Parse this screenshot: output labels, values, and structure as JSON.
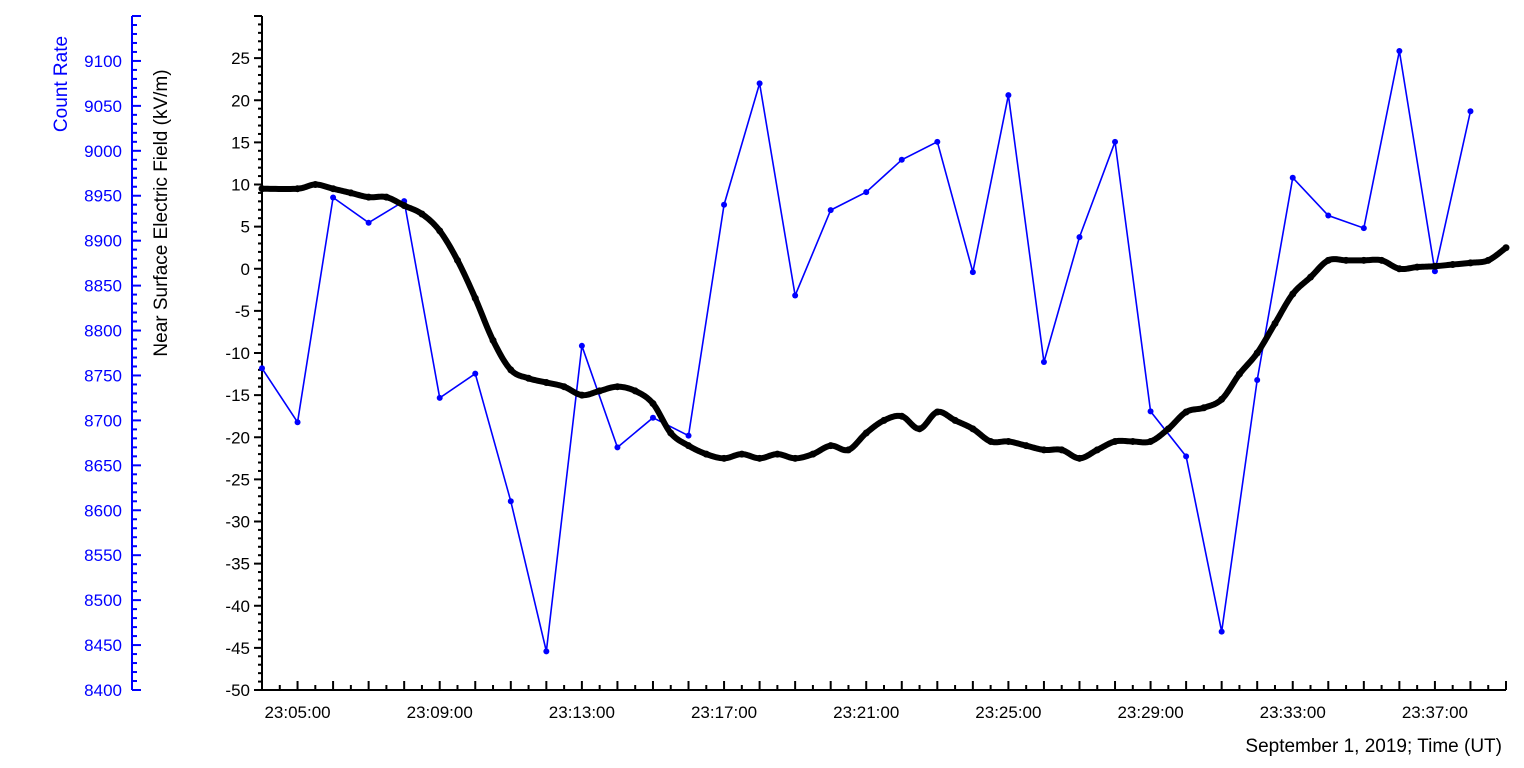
{
  "chart_data": {
    "type": "line",
    "xlabel": "September 1, 2019; Time (UT)",
    "x_ticks": [
      "23:05:00",
      "23:09:00",
      "23:13:00",
      "23:17:00",
      "23:21:00",
      "23:25:00",
      "23:29:00",
      "23:33:00",
      "23:37:00"
    ],
    "x_range_minutes": [
      "23:04:00",
      "23:39:00"
    ],
    "left_axis": {
      "label": "Count Rate",
      "color": "#0000ff",
      "ylim": [
        8400,
        9150
      ],
      "ticks": [
        8400,
        8450,
        8500,
        8550,
        8600,
        8650,
        8700,
        8750,
        8800,
        8850,
        8900,
        8950,
        9000,
        9050,
        9100
      ]
    },
    "right_axis": {
      "label": "Near Surface Electric Field (kV/m)",
      "color": "#000000",
      "ylim": [
        -50,
        30
      ],
      "ticks": [
        -50,
        -45,
        -40,
        -35,
        -30,
        -25,
        -20,
        -15,
        -10,
        -5,
        0,
        5,
        10,
        15,
        20,
        25
      ]
    },
    "series": [
      {
        "axis": "left",
        "color": "#0000ff",
        "style": "line-with-dots",
        "points": [
          [
            "23:04:00",
            8758
          ],
          [
            "23:05:00",
            8698
          ],
          [
            "23:06:00",
            8948
          ],
          [
            "23:07:00",
            8920
          ],
          [
            "23:08:00",
            8944
          ],
          [
            "23:09:00",
            8725
          ],
          [
            "23:10:00",
            8752
          ],
          [
            "23:11:00",
            8610
          ],
          [
            "23:12:00",
            8443
          ],
          [
            "23:13:00",
            8783
          ],
          [
            "23:14:00",
            8670
          ],
          [
            "23:15:00",
            8703
          ],
          [
            "23:16:00",
            8683
          ],
          [
            "23:17:00",
            8940
          ],
          [
            "23:18:00",
            9075
          ],
          [
            "23:19:00",
            8839
          ],
          [
            "23:20:00",
            8934
          ],
          [
            "23:21:00",
            8954
          ],
          [
            "23:22:00",
            8990
          ],
          [
            "23:23:00",
            9010
          ],
          [
            "23:24:00",
            8865
          ],
          [
            "23:25:00",
            9062
          ],
          [
            "23:26:00",
            8765
          ],
          [
            "23:27:00",
            8904
          ],
          [
            "23:28:00",
            9010
          ],
          [
            "23:29:00",
            8710
          ],
          [
            "23:30:00",
            8660
          ],
          [
            "23:31:00",
            8465
          ],
          [
            "23:32:00",
            8745
          ],
          [
            "23:33:00",
            8970
          ],
          [
            "23:34:00",
            8928
          ],
          [
            "23:35:00",
            8914
          ],
          [
            "23:36:00",
            9111
          ],
          [
            "23:37:00",
            8866
          ],
          [
            "23:38:00",
            9044
          ]
        ]
      },
      {
        "axis": "right",
        "color": "#000000",
        "style": "thick-dots",
        "points": [
          [
            "23:04:00",
            9.5
          ],
          [
            "23:05:00",
            9.5
          ],
          [
            "23:05:30",
            10
          ],
          [
            "23:06:00",
            9.5
          ],
          [
            "23:06:30",
            9
          ],
          [
            "23:07:00",
            8.5
          ],
          [
            "23:07:30",
            8.5
          ],
          [
            "23:08:00",
            7.5
          ],
          [
            "23:08:30",
            6.5
          ],
          [
            "23:09:00",
            4.5
          ],
          [
            "23:09:30",
            1
          ],
          [
            "23:10:00",
            -3.5
          ],
          [
            "23:10:30",
            -8.5
          ],
          [
            "23:11:00",
            -12
          ],
          [
            "23:11:30",
            -13
          ],
          [
            "23:12:00",
            -13.5
          ],
          [
            "23:12:30",
            -14
          ],
          [
            "23:13:00",
            -15
          ],
          [
            "23:13:30",
            -14.5
          ],
          [
            "23:14:00",
            -14
          ],
          [
            "23:14:30",
            -14.5
          ],
          [
            "23:15:00",
            -16
          ],
          [
            "23:15:30",
            -19.5
          ],
          [
            "23:16:00",
            -21
          ],
          [
            "23:16:30",
            -22
          ],
          [
            "23:17:00",
            -22.5
          ],
          [
            "23:17:30",
            -22
          ],
          [
            "23:18:00",
            -22.5
          ],
          [
            "23:18:30",
            -22
          ],
          [
            "23:19:00",
            -22.5
          ],
          [
            "23:19:30",
            -22
          ],
          [
            "23:20:00",
            -21
          ],
          [
            "23:20:30",
            -21.5
          ],
          [
            "23:21:00",
            -19.5
          ],
          [
            "23:21:30",
            -18
          ],
          [
            "23:22:00",
            -17.5
          ],
          [
            "23:22:30",
            -19
          ],
          [
            "23:23:00",
            -17
          ],
          [
            "23:23:30",
            -18
          ],
          [
            "23:24:00",
            -19
          ],
          [
            "23:24:30",
            -20.5
          ],
          [
            "23:25:00",
            -20.5
          ],
          [
            "23:25:30",
            -21
          ],
          [
            "23:26:00",
            -21.5
          ],
          [
            "23:26:30",
            -21.5
          ],
          [
            "23:27:00",
            -22.5
          ],
          [
            "23:27:30",
            -21.5
          ],
          [
            "23:28:00",
            -20.5
          ],
          [
            "23:28:30",
            -20.5
          ],
          [
            "23:29:00",
            -20.5
          ],
          [
            "23:29:30",
            -19
          ],
          [
            "23:30:00",
            -17
          ],
          [
            "23:30:30",
            -16.5
          ],
          [
            "23:31:00",
            -15.5
          ],
          [
            "23:31:30",
            -12.5
          ],
          [
            "23:32:00",
            -10
          ],
          [
            "23:32:30",
            -6.5
          ],
          [
            "23:33:00",
            -3
          ],
          [
            "23:33:30",
            -1
          ],
          [
            "23:34:00",
            1
          ],
          [
            "23:34:30",
            1
          ],
          [
            "23:35:00",
            1
          ],
          [
            "23:35:30",
            1
          ],
          [
            "23:36:00",
            0
          ],
          [
            "23:36:30",
            0.2
          ],
          [
            "23:37:00",
            0.3
          ],
          [
            "23:37:30",
            0.5
          ],
          [
            "23:38:00",
            0.7
          ],
          [
            "23:38:30",
            1
          ],
          [
            "23:39:00",
            2.5
          ]
        ]
      }
    ]
  }
}
